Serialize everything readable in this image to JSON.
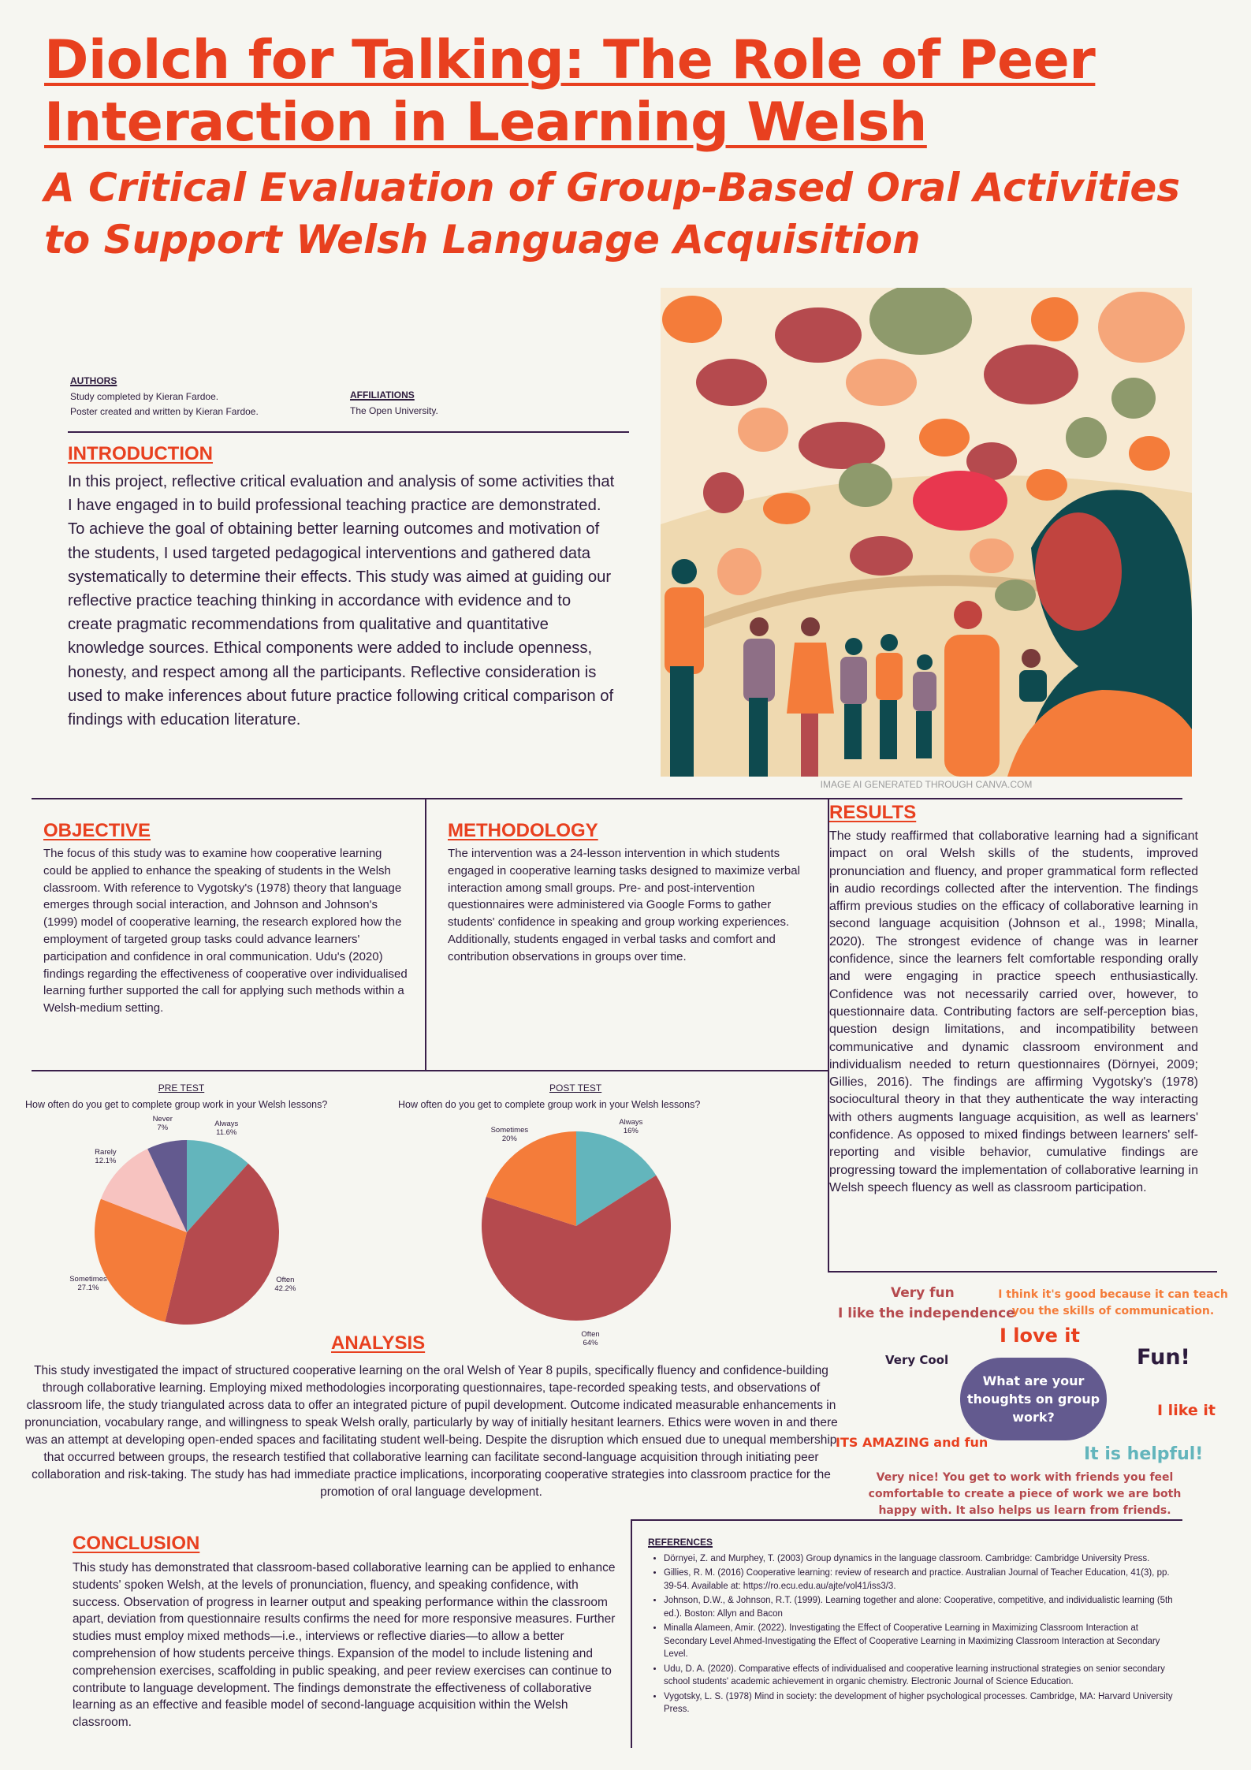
{
  "header": {
    "title": "Diolch for Talking: The Role of Peer Interaction in Learning Welsh",
    "subtitle": "A Critical Evaluation of Group-Based Oral Activities to Support Welsh Language Acquisition"
  },
  "authors": {
    "heading": "AUTHORS",
    "lines": [
      "Study completed by Kieran Fardoe.",
      "Poster created and written by Kieran Fardoe."
    ]
  },
  "affiliations": {
    "heading": "AFFILIATIONS",
    "text": "The Open University."
  },
  "image": {
    "caption": "IMAGE AI GENERATED THROUGH CANVA.COM"
  },
  "introduction": {
    "heading": "INTRODUCTION",
    "body": "In this project, reflective critical evaluation and analysis of some activities that I have engaged in to build professional teaching practice are demonstrated. To achieve the goal of obtaining better learning outcomes and motivation of the students, I used targeted pedagogical interventions and gathered data systematically to determine their effects. This study was aimed at guiding our reflective practice teaching thinking in accordance with evidence and to create pragmatic recommendations from qualitative and quantitative knowledge sources. Ethical components were added to include openness, honesty, and respect among all the participants. Reflective consideration is used to make inferences about future practice following critical comparison of findings with education literature."
  },
  "objective": {
    "heading": "OBJECTIVE",
    "body": "The focus of this study was to examine how cooperative learning could be applied to enhance the speaking of students in the Welsh classroom. With reference to Vygotsky's (1978) theory that language emerges through social interaction, and Johnson and Johnson's (1999) model of cooperative learning, the research explored how the employment of targeted group tasks could advance learners' participation and confidence in oral communication. Udu's (2020) findings regarding the effectiveness of cooperative over individualised learning further supported the call for applying such methods within a Welsh-medium setting."
  },
  "methodology": {
    "heading": "METHODOLOGY",
    "body": "The intervention was a 24-lesson intervention in which students engaged in cooperative learning tasks designed to maximize verbal interaction among small groups. Pre- and post-intervention questionnaires were administered via Google Forms to gather students' confidence in speaking and group working experiences. Additionally, students engaged in verbal tasks and comfort and contribution observations in groups over time."
  },
  "results": {
    "heading": "RESULTS",
    "body": "The study reaffirmed that collaborative learning had a significant impact on oral Welsh skills of the students, improved pronunciation and fluency, and proper grammatical form reflected in audio recordings collected after the intervention. The findings affirm previous studies on the efficacy of collaborative learning in second language acquisition (Johnson et al., 1998; Minalla, 2020). The strongest evidence of change was in learner confidence, since the learners felt comfortable responding orally and were engaging in practice speech enthusiastically. Confidence was not necessarily carried over, however, to questionnaire data. Contributing factors are self-perception bias, question design limitations, and incompatibility between communicative and dynamic classroom environment and individualism needed to return questionnaires (Dörnyei, 2009; Gillies, 2016). The findings are affirming Vygotsky's (1978) sociocultural theory in that they authenticate the way interacting with others augments language acquisition, as well as learners' confidence. As opposed to mixed findings between learners' self- reporting and visible behavior, cumulative findings are progressing toward the implementation of collaborative learning in Welsh speech fluency as well as classroom participation."
  },
  "chart_data": [
    {
      "type": "pie",
      "title": "PRE TEST",
      "question": "How often do you get to complete group work in your Welsh lessons?",
      "slices": [
        {
          "label": "Always",
          "value": 11.6,
          "display": "11.6%",
          "color": "#63b5bc"
        },
        {
          "label": "Often",
          "value": 42.2,
          "display": "42.2%",
          "color": "#b54a4e"
        },
        {
          "label": "Sometimes",
          "value": 27.1,
          "display": "27.1%",
          "color": "#f47c3a"
        },
        {
          "label": "Rarely",
          "value": 12.1,
          "display": "12.1%",
          "color": "#f7c3c0"
        },
        {
          "label": "Never",
          "value": 7,
          "display": "7%",
          "color": "#635a8f"
        }
      ]
    },
    {
      "type": "pie",
      "title": "POST TEST",
      "question": "How often do you get to complete group work in your Welsh lessons?",
      "slices": [
        {
          "label": "Always",
          "value": 16,
          "display": "16%",
          "color": "#63b5bc"
        },
        {
          "label": "Often",
          "value": 64,
          "display": "64%",
          "color": "#b54a4e"
        },
        {
          "label": "Sometimes",
          "value": 20,
          "display": "20%",
          "color": "#f47c3a"
        }
      ]
    }
  ],
  "analysis": {
    "heading": "ANALYSIS",
    "body": "This study investigated the impact of structured cooperative learning on the oral Welsh of Year 8 pupils, specifically fluency and confidence-building through collaborative learning. Employing mixed methodologies incorporating questionnaires, tape-recorded speaking tests, and observations of classroom life, the study triangulated across data to offer an integrated picture of pupil development. Outcome indicated measurable enhancements in pronunciation, vocabulary range, and willingness to speak Welsh orally, particularly by way of initially hesitant learners. Ethics were woven in and there was an attempt at developing open-ended spaces and facilitating student well-being. Despite the disruption which ensued due to unequal membership that occurred between groups, the research testified that collaborative learning can facilitate second-language acquisition through initiating peer collaboration and risk-taking. The study has had immediate practice implications, incorporating cooperative strategies into classroom practice for the promotion of oral language development."
  },
  "feedback": {
    "question": "What are your thoughts on group work?",
    "quotes": [
      "Very fun",
      "I like the independence",
      "I think it's good because it can teach you the skills of communication.",
      "I love it",
      "Very Cool",
      "Fun!",
      "I like it",
      "ITS AMAZING and fun",
      "It is helpful!",
      "Very nice! You get to work with friends you feel comfortable to create a piece of work we are both happy with. It also helps us learn from friends."
    ]
  },
  "conclusion": {
    "heading": "CONCLUSION",
    "body": "This study has demonstrated that classroom-based collaborative learning can be applied to enhance students' spoken Welsh, at the levels of pronunciation, fluency, and speaking confidence, with success. Observation of progress in learner output and speaking performance within the classroom apart, deviation from questionnaire results confirms the need for more responsive measures. Further studies must employ mixed methods—i.e., interviews or reflective diaries—to allow a better comprehension of how students perceive things. Expansion of the model to include listening and comprehension exercises, scaffolding in public speaking, and peer review exercises can continue to contribute to language development. The findings demonstrate the effectiveness of collaborative learning as an effective and feasible model of second-language acquisition within the Welsh classroom."
  },
  "references": {
    "heading": "REFERENCES",
    "items": [
      "Dörnyei, Z. and Murphey, T. (2003) Group dynamics in the language classroom. Cambridge: Cambridge University Press.",
      "Gillies, R. M. (2016) Cooperative learning: review of research and practice. Australian Journal of Teacher Education, 41(3), pp. 39-54. Available at: https://ro.ecu.edu.au/ajte/vol41/iss3/3.",
      "Johnson, D.W., & Johnson, R.T. (1999). Learning together and alone: Cooperative, competitive, and individualistic learning (5th ed.). Boston: Allyn and Bacon",
      "Minalla Alameen, Amir. (2022). Investigating the Effect of Cooperative Learning in Maximizing Classroom Interaction at Secondary Level Ahmed-Investigating the Effect of Cooperative Learning in Maximizing Classroom Interaction at Secondary Level.",
      "Udu, D. A. (2020). Comparative effects of individualised and cooperative learning instructional strategies on senior secondary school students' academic achievement in organic chemistry. Electronic Journal of Science Education.",
      "Vygotsky, L. S. (1978) Mind in society: the development of higher psychological processes. Cambridge, MA: Harvard University Press."
    ]
  }
}
